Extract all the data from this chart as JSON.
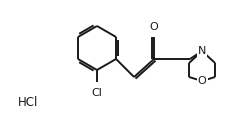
{
  "background_color": "#ffffff",
  "line_color": "#1a1a1a",
  "line_width": 1.4,
  "figsize": [
    2.3,
    1.22
  ],
  "dpi": 100,
  "hcl_text": "HCl",
  "hcl_fontsize": 8.5,
  "cl_text": "Cl",
  "cl_fontsize": 8,
  "n_text": "N",
  "n_fontsize": 8,
  "o_ketone_text": "O",
  "o_ketone_fontsize": 8,
  "o_morph_text": "O",
  "o_morph_fontsize": 8
}
